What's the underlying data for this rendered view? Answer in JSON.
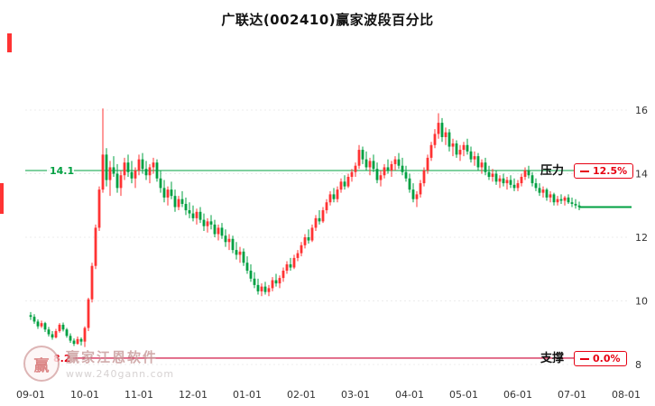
{
  "title": "广联达(002410)赢家波段百分比",
  "colors": {
    "up": "#ff3333",
    "down": "#00a042",
    "resistance_line": "#00a042",
    "support_line": "#cc0033",
    "current_line": "#00a042",
    "grid": "#ececec",
    "axis_text": "#333333",
    "badge": "#e60012"
  },
  "resistance": {
    "label": "压力",
    "badge": "12.5%",
    "value": 14.1,
    "value_label": "14.1"
  },
  "support": {
    "label": "支撑",
    "badge": "0.0%",
    "value": 8.2,
    "value_label": "8.2"
  },
  "current_price": 12.95,
  "watermark": {
    "logo_text": "赢",
    "brand": "赢家江恩软件",
    "url": "www.240gann.com"
  },
  "chart_data": {
    "type": "candlestick",
    "title": "广联达(002410)赢家波段百分比",
    "legend": "none",
    "grid": "dotted-horizontal",
    "y_axis_side": "right",
    "y_ticks": [
      16,
      14,
      12,
      10,
      8
    ],
    "ylim": [
      7.4,
      17.8
    ],
    "x_ticks": [
      {
        "label": "09-01",
        "i": 0
      },
      {
        "label": "10-01",
        "i": 15
      },
      {
        "label": "11-01",
        "i": 30
      },
      {
        "label": "12-01",
        "i": 45
      },
      {
        "label": "01-01",
        "i": 60
      },
      {
        "label": "02-01",
        "i": 75
      },
      {
        "label": "03-01",
        "i": 90
      },
      {
        "label": "04-01",
        "i": 105
      },
      {
        "label": "05-01",
        "i": 120
      },
      {
        "label": "06-01",
        "i": 135
      },
      {
        "label": "07-01",
        "i": 150
      },
      {
        "label": "08-01",
        "i": 165
      }
    ],
    "overlays": {
      "resistance": 14.1,
      "support": 8.2,
      "current_price_line": 12.95
    },
    "candles": [
      [
        9.55,
        9.65,
        9.4,
        9.5
      ],
      [
        9.5,
        9.58,
        9.28,
        9.35
      ],
      [
        9.35,
        9.42,
        9.12,
        9.2
      ],
      [
        9.2,
        9.38,
        9.15,
        9.3
      ],
      [
        9.3,
        9.34,
        9.02,
        9.1
      ],
      [
        9.1,
        9.18,
        8.88,
        8.95
      ],
      [
        8.95,
        9.05,
        8.78,
        8.85
      ],
      [
        8.85,
        9.12,
        8.82,
        9.05
      ],
      [
        9.05,
        9.3,
        9.0,
        9.25
      ],
      [
        9.25,
        9.32,
        9.04,
        9.1
      ],
      [
        9.1,
        9.15,
        8.84,
        8.9
      ],
      [
        8.9,
        8.98,
        8.68,
        8.75
      ],
      [
        8.75,
        8.82,
        8.58,
        8.65
      ],
      [
        8.65,
        8.88,
        8.62,
        8.8
      ],
      [
        8.8,
        8.85,
        8.6,
        8.72
      ],
      [
        8.72,
        9.2,
        8.55,
        9.15
      ],
      [
        9.15,
        10.1,
        9.05,
        10.05
      ],
      [
        10.05,
        11.2,
        9.95,
        11.1
      ],
      [
        11.1,
        12.4,
        11.0,
        12.3
      ],
      [
        12.3,
        13.6,
        12.2,
        13.5
      ],
      [
        13.5,
        16.05,
        13.4,
        14.6
      ],
      [
        14.6,
        14.8,
        13.6,
        13.8
      ],
      [
        13.8,
        14.4,
        13.3,
        14.2
      ],
      [
        14.2,
        14.55,
        13.9,
        14.0
      ],
      [
        14.0,
        14.3,
        13.4,
        13.55
      ],
      [
        13.55,
        14.1,
        13.3,
        13.95
      ],
      [
        13.95,
        14.5,
        13.8,
        14.35
      ],
      [
        14.35,
        14.6,
        13.9,
        14.05
      ],
      [
        14.05,
        14.4,
        13.7,
        13.85
      ],
      [
        13.85,
        14.2,
        13.55,
        14.1
      ],
      [
        14.1,
        14.6,
        13.95,
        14.45
      ],
      [
        14.45,
        14.65,
        14.0,
        14.15
      ],
      [
        14.15,
        14.4,
        13.8,
        13.95
      ],
      [
        13.95,
        14.3,
        13.7,
        14.2
      ],
      [
        14.2,
        14.5,
        14.0,
        14.35
      ],
      [
        14.35,
        14.45,
        13.75,
        13.85
      ],
      [
        13.85,
        14.1,
        13.4,
        13.55
      ],
      [
        13.55,
        13.8,
        13.1,
        13.25
      ],
      [
        13.25,
        13.6,
        13.0,
        13.5
      ],
      [
        13.5,
        13.75,
        13.2,
        13.3
      ],
      [
        13.3,
        13.5,
        12.8,
        12.95
      ],
      [
        12.95,
        13.3,
        12.85,
        13.2
      ],
      [
        13.2,
        13.45,
        12.95,
        13.05
      ],
      [
        13.05,
        13.25,
        12.7,
        12.85
      ],
      [
        12.85,
        13.1,
        12.6,
        12.75
      ],
      [
        12.75,
        13.0,
        12.5,
        12.6
      ],
      [
        12.6,
        12.9,
        12.4,
        12.8
      ],
      [
        12.8,
        12.95,
        12.45,
        12.55
      ],
      [
        12.55,
        12.75,
        12.2,
        12.35
      ],
      [
        12.35,
        12.6,
        12.15,
        12.5
      ],
      [
        12.5,
        12.7,
        12.25,
        12.4
      ],
      [
        12.4,
        12.55,
        12.0,
        12.1
      ],
      [
        12.1,
        12.4,
        11.9,
        12.3
      ],
      [
        12.3,
        12.45,
        11.95,
        12.05
      ],
      [
        12.05,
        12.25,
        11.7,
        11.85
      ],
      [
        11.85,
        12.1,
        11.6,
        11.95
      ],
      [
        11.95,
        12.05,
        11.5,
        11.6
      ],
      [
        11.6,
        11.85,
        11.3,
        11.45
      ],
      [
        11.45,
        11.7,
        11.2,
        11.55
      ],
      [
        11.55,
        11.65,
        11.1,
        11.2
      ],
      [
        11.2,
        11.4,
        10.85,
        10.95
      ],
      [
        10.95,
        11.15,
        10.6,
        10.7
      ],
      [
        10.7,
        10.9,
        10.4,
        10.5
      ],
      [
        10.5,
        10.7,
        10.2,
        10.3
      ],
      [
        10.3,
        10.55,
        10.15,
        10.45
      ],
      [
        10.45,
        10.6,
        10.2,
        10.28
      ],
      [
        10.28,
        10.5,
        10.15,
        10.4
      ],
      [
        10.4,
        10.75,
        10.3,
        10.65
      ],
      [
        10.65,
        10.85,
        10.45,
        10.55
      ],
      [
        10.55,
        10.8,
        10.4,
        10.72
      ],
      [
        10.72,
        11.05,
        10.6,
        10.95
      ],
      [
        10.95,
        11.25,
        10.85,
        11.15
      ],
      [
        11.15,
        11.35,
        10.95,
        11.05
      ],
      [
        11.05,
        11.45,
        11.0,
        11.35
      ],
      [
        11.35,
        11.6,
        11.25,
        11.5
      ],
      [
        11.5,
        11.85,
        11.4,
        11.75
      ],
      [
        11.75,
        12.1,
        11.65,
        12.0
      ],
      [
        12.0,
        12.25,
        11.8,
        11.9
      ],
      [
        11.9,
        12.4,
        11.85,
        12.3
      ],
      [
        12.3,
        12.7,
        12.2,
        12.6
      ],
      [
        12.6,
        12.85,
        12.4,
        12.5
      ],
      [
        12.5,
        12.95,
        12.45,
        12.85
      ],
      [
        12.85,
        13.2,
        12.75,
        13.1
      ],
      [
        13.1,
        13.45,
        13.0,
        13.35
      ],
      [
        13.35,
        13.55,
        13.1,
        13.2
      ],
      [
        13.2,
        13.6,
        13.1,
        13.5
      ],
      [
        13.5,
        13.85,
        13.4,
        13.75
      ],
      [
        13.75,
        13.95,
        13.5,
        13.6
      ],
      [
        13.6,
        14.0,
        13.55,
        13.9
      ],
      [
        13.9,
        14.15,
        13.75,
        14.05
      ],
      [
        14.05,
        14.35,
        13.9,
        14.25
      ],
      [
        14.25,
        14.9,
        14.15,
        14.75
      ],
      [
        14.75,
        14.85,
        14.3,
        14.45
      ],
      [
        14.45,
        14.7,
        14.1,
        14.2
      ],
      [
        14.2,
        14.5,
        13.95,
        14.4
      ],
      [
        14.4,
        14.6,
        14.05,
        14.15
      ],
      [
        14.15,
        14.35,
        13.7,
        13.8
      ],
      [
        13.8,
        14.1,
        13.6,
        13.95
      ],
      [
        13.95,
        14.3,
        13.85,
        14.2
      ],
      [
        14.2,
        14.45,
        14.0,
        14.1
      ],
      [
        14.1,
        14.4,
        13.9,
        14.3
      ],
      [
        14.3,
        14.55,
        14.1,
        14.45
      ],
      [
        14.45,
        14.65,
        14.15,
        14.25
      ],
      [
        14.25,
        14.5,
        13.95,
        14.05
      ],
      [
        14.05,
        14.25,
        13.75,
        13.85
      ],
      [
        13.85,
        14.0,
        13.4,
        13.5
      ],
      [
        13.5,
        13.7,
        13.1,
        13.2
      ],
      [
        13.2,
        13.45,
        12.95,
        13.35
      ],
      [
        13.35,
        13.8,
        13.25,
        13.7
      ],
      [
        13.7,
        14.2,
        13.6,
        14.1
      ],
      [
        14.1,
        14.6,
        14.0,
        14.5
      ],
      [
        14.5,
        15.0,
        14.4,
        14.9
      ],
      [
        14.9,
        15.4,
        14.8,
        15.25
      ],
      [
        15.25,
        15.9,
        15.1,
        15.6
      ],
      [
        15.6,
        15.75,
        15.0,
        15.15
      ],
      [
        15.15,
        15.45,
        14.9,
        15.3
      ],
      [
        15.3,
        15.4,
        14.7,
        14.85
      ],
      [
        14.85,
        15.1,
        14.55,
        14.95
      ],
      [
        14.95,
        15.05,
        14.5,
        14.6
      ],
      [
        14.6,
        14.9,
        14.4,
        14.75
      ],
      [
        14.75,
        15.0,
        14.55,
        14.9
      ],
      [
        14.9,
        15.1,
        14.6,
        14.7
      ],
      [
        14.7,
        14.85,
        14.35,
        14.45
      ],
      [
        14.45,
        14.7,
        14.25,
        14.55
      ],
      [
        14.55,
        14.65,
        14.1,
        14.2
      ],
      [
        14.2,
        14.45,
        14.0,
        14.35
      ],
      [
        14.35,
        14.5,
        13.95,
        14.05
      ],
      [
        14.05,
        14.25,
        13.8,
        13.9
      ],
      [
        13.9,
        14.15,
        13.75,
        14.0
      ],
      [
        14.0,
        14.1,
        13.65,
        13.75
      ],
      [
        13.75,
        13.95,
        13.55,
        13.85
      ],
      [
        13.85,
        14.0,
        13.6,
        13.7
      ],
      [
        13.7,
        13.9,
        13.5,
        13.8
      ],
      [
        13.8,
        13.95,
        13.55,
        13.65
      ],
      [
        13.65,
        13.85,
        13.45,
        13.55
      ],
      [
        13.55,
        13.8,
        13.45,
        13.7
      ],
      [
        13.7,
        14.0,
        13.6,
        13.9
      ],
      [
        13.9,
        14.2,
        13.8,
        14.1
      ],
      [
        14.1,
        14.25,
        13.85,
        13.95
      ],
      [
        13.95,
        14.05,
        13.6,
        13.7
      ],
      [
        13.7,
        13.85,
        13.45,
        13.55
      ],
      [
        13.55,
        13.7,
        13.3,
        13.4
      ],
      [
        13.4,
        13.6,
        13.25,
        13.5
      ],
      [
        13.5,
        13.55,
        13.15,
        13.25
      ],
      [
        13.25,
        13.45,
        13.1,
        13.35
      ],
      [
        13.35,
        13.4,
        13.0,
        13.1
      ],
      [
        13.1,
        13.3,
        13.0,
        13.2
      ],
      [
        13.2,
        13.35,
        13.05,
        13.15
      ],
      [
        13.15,
        13.3,
        13.0,
        13.25
      ],
      [
        13.25,
        13.35,
        13.05,
        13.1
      ],
      [
        13.1,
        13.25,
        12.95,
        13.05
      ],
      [
        13.05,
        13.2,
        12.9,
        13.0
      ],
      [
        13.0,
        13.12,
        12.85,
        12.95
      ]
    ]
  }
}
